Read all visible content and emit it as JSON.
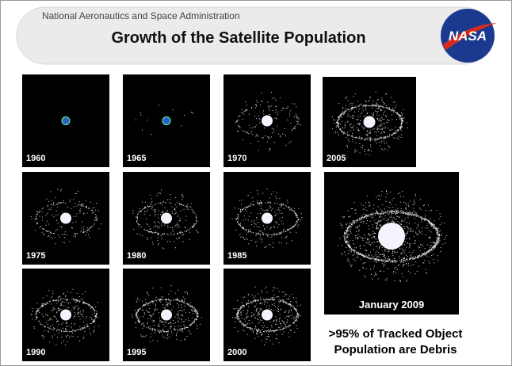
{
  "header": {
    "agency": "National Aeronautics and Space Administration",
    "title": "Growth of the Satellite Population",
    "logo": "NASA"
  },
  "panels": [
    {
      "label": "1960"
    },
    {
      "label": "1965"
    },
    {
      "label": "1970"
    },
    {
      "label": "2005"
    },
    {
      "label": "1975"
    },
    {
      "label": "1980"
    },
    {
      "label": "1985"
    },
    {
      "label": "1990"
    },
    {
      "label": "1995"
    },
    {
      "label": "2000"
    }
  ],
  "featured": {
    "label": "January 2009"
  },
  "caption": ">95% of Tracked Object Population are Debris"
}
